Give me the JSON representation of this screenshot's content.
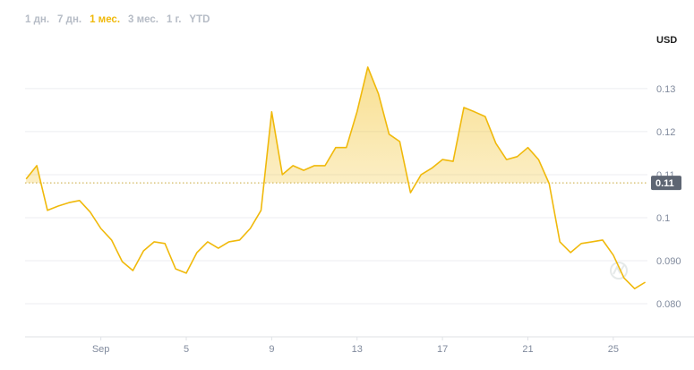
{
  "chart_data": {
    "type": "line",
    "range_buttons": [
      "1 дн.",
      "7 дн.",
      "1 мес.",
      "3 мес.",
      "1 г.",
      "YTD"
    ],
    "active_range": 2,
    "y_label": "USD",
    "xlim": [
      -2.55,
      26.6
    ],
    "xticks": [
      {
        "value": 1,
        "label": "Sep"
      },
      5,
      9,
      13,
      17,
      21,
      25
    ],
    "ylim": [
      0.0723,
      0.1381
    ],
    "yticks": [
      {
        "value": 0.08,
        "label": "0.080"
      },
      {
        "value": 0.09,
        "label": "0.090"
      },
      0.1,
      0.11,
      0.12,
      0.13
    ],
    "grid": true,
    "reference_value": 0.1081,
    "reference_label": "0.11",
    "series": [
      {
        "color": "#f0b90b",
        "x": [
          -2.5,
          -2,
          -1.5,
          -1,
          -0.5,
          0,
          0.5,
          1,
          1.5,
          2,
          2.5,
          3,
          3.5,
          4,
          4.5,
          5,
          5.5,
          6,
          6.5,
          7,
          7.5,
          8,
          8.5,
          9,
          9.5,
          10,
          10.5,
          11,
          11.5,
          12,
          12.5,
          13,
          13.5,
          14,
          14.5,
          15,
          15.5,
          16,
          16.5,
          17,
          17.5,
          18,
          18.5,
          19,
          19.5,
          20,
          20.5,
          21,
          21.5,
          22,
          22.5,
          23,
          23.5,
          24,
          24.5,
          25,
          25.5,
          26,
          26.5
        ],
        "values": [
          0.109,
          0.1121,
          0.1017,
          0.1027,
          0.1035,
          0.104,
          0.1013,
          0.0975,
          0.0948,
          0.0898,
          0.0877,
          0.0923,
          0.0944,
          0.094,
          0.0881,
          0.0871,
          0.0919,
          0.0944,
          0.0929,
          0.0944,
          0.0948,
          0.0975,
          0.1017,
          0.1246,
          0.11,
          0.1121,
          0.111,
          0.1121,
          0.1121,
          0.1163,
          0.1163,
          0.1246,
          0.135,
          0.1288,
          0.1194,
          0.1177,
          0.1058,
          0.11,
          0.1115,
          0.1135,
          0.1131,
          0.1256,
          0.1246,
          0.1235,
          0.1173,
          0.1135,
          0.1142,
          0.1163,
          0.1135,
          0.1079,
          0.0944,
          0.0919,
          0.094,
          0.0944,
          0.0948,
          0.0913,
          0.086,
          0.0835,
          0.085
        ]
      }
    ]
  }
}
